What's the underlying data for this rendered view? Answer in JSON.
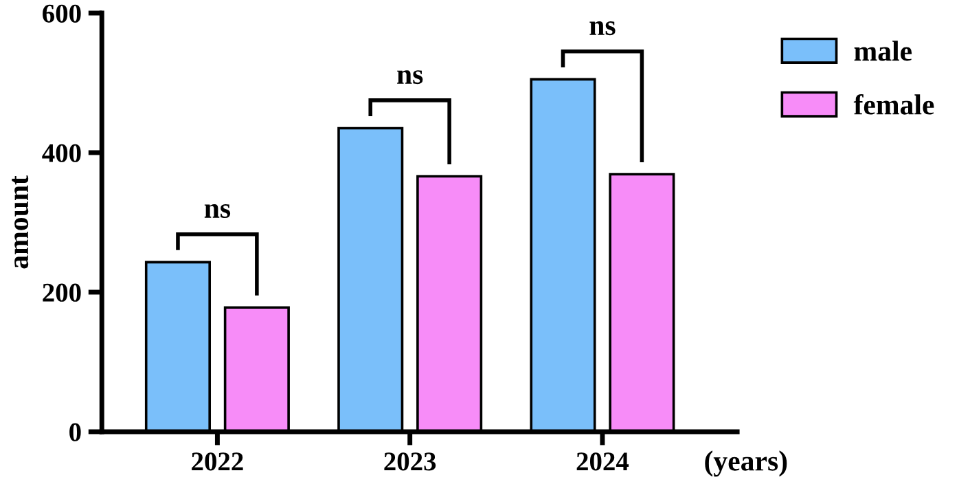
{
  "chart_data": {
    "type": "bar",
    "xlabel": "(years)",
    "ylabel": "amount",
    "categories": [
      "2022",
      "2023",
      "2024"
    ],
    "series": [
      {
        "name": "male",
        "color": "#7abffa",
        "values": [
          243,
          435,
          505
        ]
      },
      {
        "name": "female",
        "color": "#f78cf8",
        "values": [
          178,
          366,
          369
        ]
      }
    ],
    "ylim": [
      0,
      600
    ],
    "yticks": [
      0,
      200,
      400,
      600
    ],
    "grid": false,
    "legend": "top right",
    "annotations": [
      "ns",
      "ns",
      "ns"
    ]
  }
}
